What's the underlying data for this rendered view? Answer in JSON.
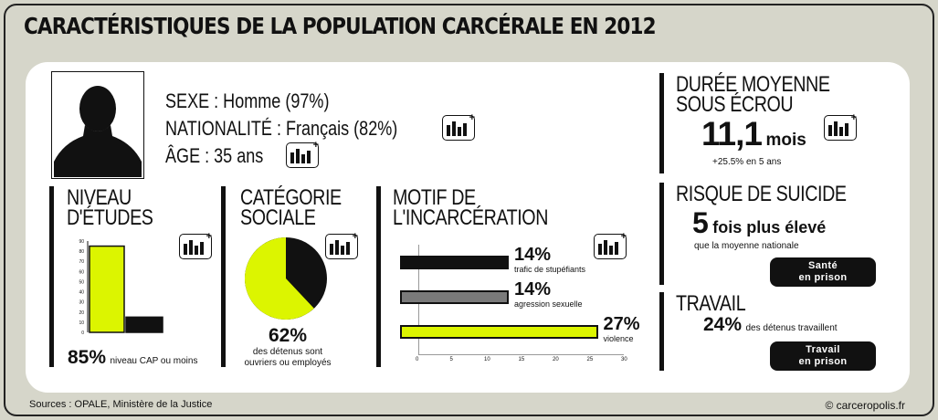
{
  "title": "CARACTÉRISTIQUES DE LA POPULATION CARCÉRALE EN 2012",
  "profile": {
    "sexe": "SEXE : Homme (97%)",
    "nationalite": "NATIONALITÉ : Français (82%)",
    "age": "ÂGE : 35 ans"
  },
  "etudes": {
    "title_line1": "NIVEAU",
    "title_line2": "D'ÉTUDES",
    "y_ticks": [
      "90",
      "80",
      "70",
      "60",
      "50",
      "40",
      "30",
      "20",
      "10",
      "0"
    ],
    "values": [
      85,
      15
    ],
    "stat_value": "85%",
    "stat_label": "niveau CAP ou moins"
  },
  "categorie": {
    "title_line1": "CATÉGORIE",
    "title_line2": "SOCIALE",
    "pie_value": 62,
    "stat_value": "62%",
    "stat_label_line1": "des détenus sont",
    "stat_label_line2": "ouvriers ou employés"
  },
  "motif": {
    "title_line1": "MOTIF DE",
    "title_line2": "L'INCARCÉRATION",
    "bars": [
      {
        "value": 14,
        "pct": "14%",
        "label": "trafic de stupéfiants",
        "color": "#111111"
      },
      {
        "value": 14,
        "pct": "14%",
        "label": "agression sexuelle",
        "color": "#7a7a7a"
      },
      {
        "value": 27,
        "pct": "27%",
        "label": "violence",
        "color": "#dcf500"
      }
    ],
    "x_ticks": [
      "0",
      "5",
      "10",
      "15",
      "20",
      "25",
      "30"
    ]
  },
  "duree": {
    "title_line1": "DURÉE MOYENNE",
    "title_line2": "SOUS ÉCROU",
    "value": "11,1",
    "unit": "mois",
    "change": "+25.5% en 5 ans"
  },
  "suicide": {
    "title": "RISQUE DE SUICIDE",
    "value": "5",
    "value_text": "fois plus élevé",
    "sub": "que la moyenne nationale",
    "button_line1": "Santé",
    "button_line2": "en prison"
  },
  "travail": {
    "title": "TRAVAIL",
    "value": "24%",
    "label": "des détenus travaillent",
    "button_line1": "Travail",
    "button_line2": "en prison"
  },
  "footer": {
    "sources": "Sources : OPALE, Ministère de la Justice",
    "credit": "© carceropolis.fr"
  },
  "colors": {
    "accent": "#dcf500",
    "dark": "#111111",
    "grey": "#7a7a7a"
  }
}
